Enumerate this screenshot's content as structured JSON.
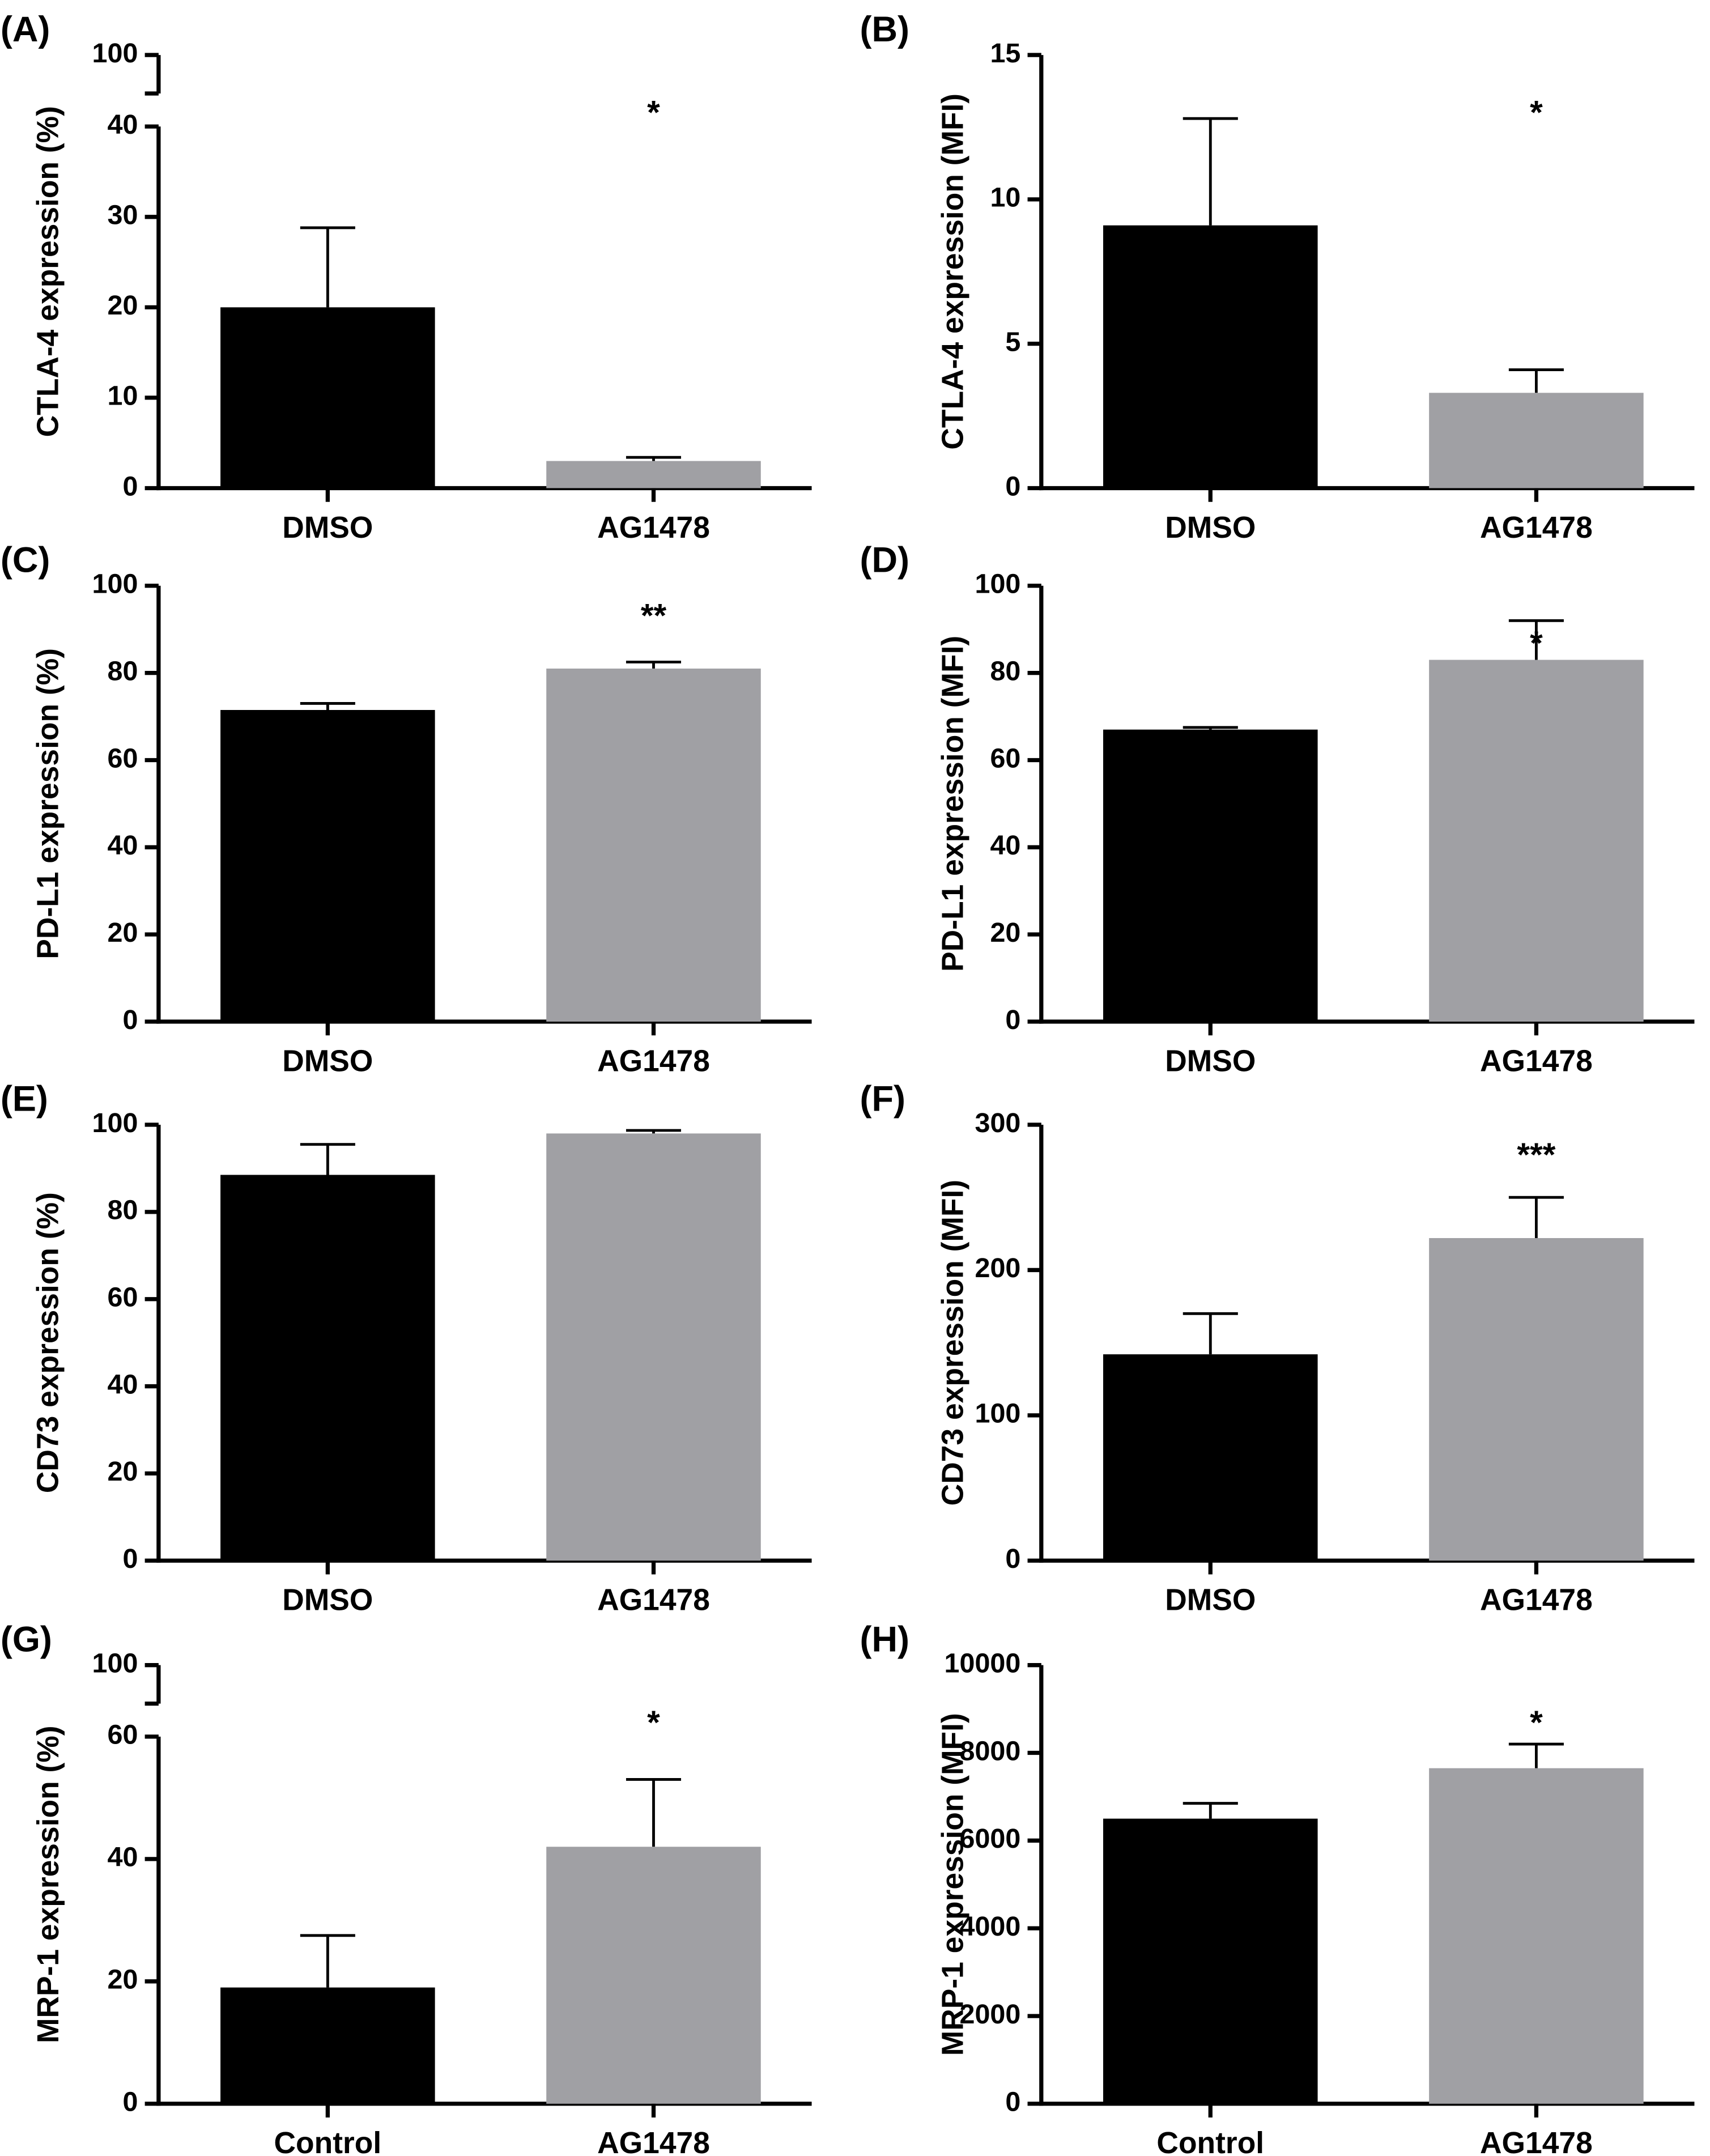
{
  "chart_data": [
    {
      "type": "bar",
      "panel": "(A)",
      "y_label": "CTLA-4 expression (%)",
      "categories": [
        "DMSO",
        "AG1478"
      ],
      "values": [
        20,
        3
      ],
      "errors": [
        8.8,
        0.4
      ],
      "colors": [
        "#000000",
        "#a0a0a4"
      ],
      "ylim": [
        0,
        100
      ],
      "y_break": [
        40,
        100
      ],
      "yticks": [
        0,
        10,
        20,
        30,
        40,
        100
      ],
      "annotation": "*"
    },
    {
      "type": "bar",
      "panel": "(B)",
      "y_label": "CTLA-4 expression (MFI)",
      "categories": [
        "DMSO",
        "AG1478"
      ],
      "values": [
        9.1,
        3.3
      ],
      "errors": [
        3.7,
        0.8
      ],
      "colors": [
        "#000000",
        "#a0a0a4"
      ],
      "ylim": [
        0,
        15
      ],
      "yticks": [
        0,
        5,
        10,
        15
      ],
      "annotation": "*"
    },
    {
      "type": "bar",
      "panel": "(C)",
      "y_label": "PD-L1 expression (%)",
      "categories": [
        "DMSO",
        "AG1478"
      ],
      "values": [
        71.5,
        81
      ],
      "errors": [
        1.5,
        1.5
      ],
      "colors": [
        "#000000",
        "#a0a0a4"
      ],
      "ylim": [
        0,
        100
      ],
      "yticks": [
        0,
        20,
        40,
        60,
        80,
        100
      ],
      "annotation": "**"
    },
    {
      "type": "bar",
      "panel": "(D)",
      "y_label": "PD-L1 expression (MFI)",
      "categories": [
        "DMSO",
        "AG1478"
      ],
      "values": [
        67,
        83
      ],
      "errors": [
        0.5,
        9
      ],
      "colors": [
        "#000000",
        "#a0a0a4"
      ],
      "ylim": [
        0,
        100
      ],
      "yticks": [
        0,
        20,
        40,
        60,
        80,
        100
      ],
      "annotation": "*"
    },
    {
      "type": "bar",
      "panel": "(E)",
      "y_label": "CD73 expression (%)",
      "categories": [
        "DMSO",
        "AG1478"
      ],
      "values": [
        88.5,
        98
      ],
      "errors": [
        7,
        0.7
      ],
      "colors": [
        "#000000",
        "#a0a0a4"
      ],
      "ylim": [
        0,
        100
      ],
      "yticks": [
        0,
        20,
        40,
        60,
        80,
        100
      ]
    },
    {
      "type": "bar",
      "panel": "(F)",
      "y_label": "CD73 expression (MFI)",
      "categories": [
        "DMSO",
        "AG1478"
      ],
      "values": [
        142,
        222
      ],
      "errors": [
        28,
        28
      ],
      "colors": [
        "#000000",
        "#a0a0a4"
      ],
      "ylim": [
        0,
        300
      ],
      "yticks": [
        0,
        100,
        200,
        300
      ],
      "annotation": "***"
    },
    {
      "type": "bar",
      "panel": "(G)",
      "y_label": "MRP-1 expression (%)",
      "categories": [
        "Control",
        "AG1478"
      ],
      "values": [
        19,
        42
      ],
      "errors": [
        8.5,
        11
      ],
      "colors": [
        "#000000",
        "#a0a0a4"
      ],
      "ylim": [
        0,
        100
      ],
      "y_break": [
        60,
        100
      ],
      "yticks": [
        0,
        20,
        40,
        60,
        100
      ],
      "annotation": "*"
    },
    {
      "type": "bar",
      "panel": "(H)",
      "y_label": "MRP-1 expression (MFI)",
      "categories": [
        "Control",
        "AG1478"
      ],
      "values": [
        6500,
        7650
      ],
      "errors": [
        350,
        550
      ],
      "colors": [
        "#000000",
        "#a0a0a4"
      ],
      "ylim": [
        0,
        10000
      ],
      "yticks": [
        0,
        2000,
        4000,
        6000,
        8000,
        10000
      ],
      "annotation": "*"
    }
  ]
}
